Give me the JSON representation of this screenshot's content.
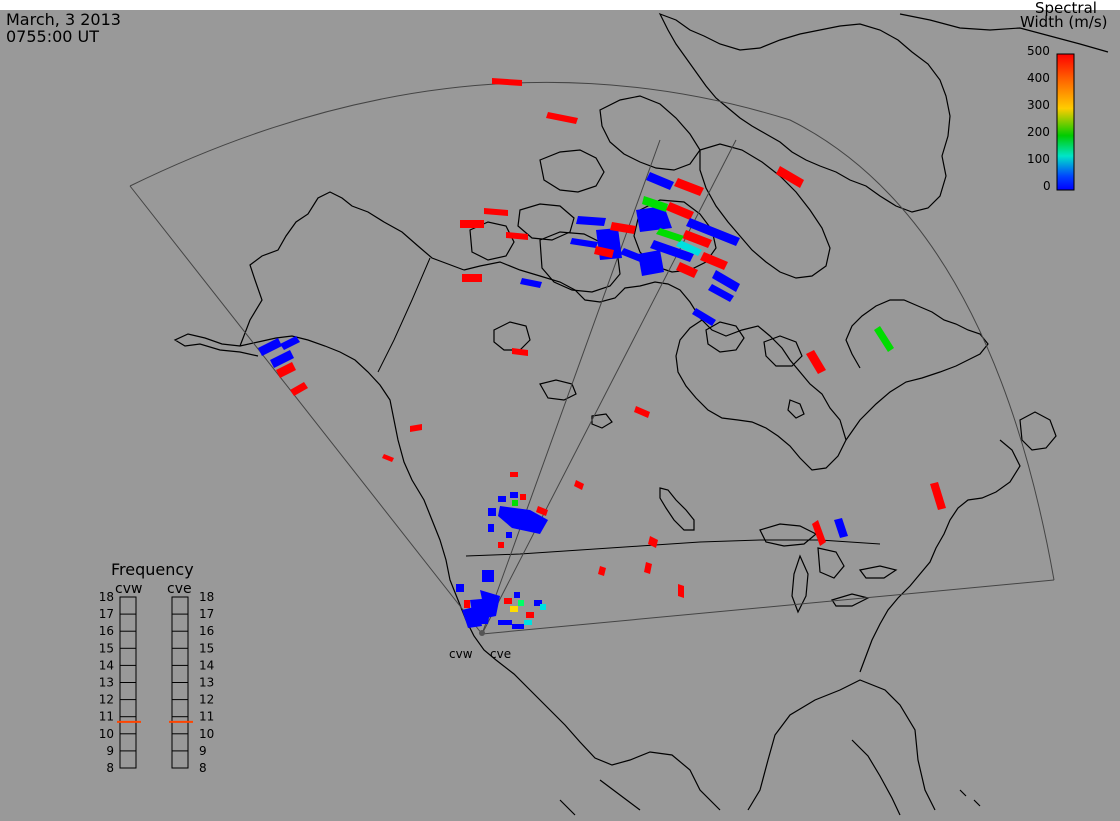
{
  "header": {
    "date": "March, 3 2013",
    "time": "0755:00 UT"
  },
  "colorbar": {
    "title_line1": "Spectral",
    "title_line2": "Width (m/s)",
    "ticks": [
      "500",
      "400",
      "300",
      "200",
      "100",
      "0"
    ],
    "stops": [
      "#ff0000",
      "#ff6a00",
      "#ffcc00",
      "#00cc00",
      "#00e5c8",
      "#0044ff",
      "#0000ff"
    ]
  },
  "frequency_panel": {
    "title": "Frequency",
    "left_label": "cvw",
    "right_label": "cve",
    "ticks": [
      "18",
      "17",
      "16",
      "15",
      "14",
      "13",
      "12",
      "11",
      "10",
      "9",
      "8"
    ],
    "cvw_value": 10.7,
    "cve_value": 10.7,
    "marker_color": "#ff4400"
  },
  "radars": {
    "cvw_label": "cvw",
    "cve_label": "cve"
  },
  "colors": {
    "background": "#999999",
    "blue": "#0000ff",
    "red": "#ff0000",
    "green": "#00dd00",
    "cyan": "#00e0e0"
  }
}
